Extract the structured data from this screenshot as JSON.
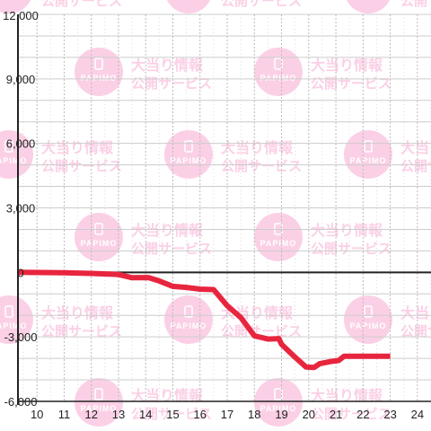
{
  "chart_data": {
    "type": "line",
    "title": "",
    "xlabel": "",
    "ylabel": "",
    "xlim": [
      9.3,
      24.5
    ],
    "ylim": [
      -6000,
      12000
    ],
    "x_ticks": [
      10,
      11,
      12,
      13,
      14,
      15,
      16,
      17,
      18,
      19,
      20,
      21,
      22,
      23,
      24
    ],
    "x_tick_labels": [
      "10",
      "11",
      "12",
      "13",
      "14",
      "15",
      "16",
      "17",
      "18",
      "19",
      "20",
      "21",
      "22",
      "23",
      "24"
    ],
    "y_ticks": [
      -6000,
      -3000,
      0,
      3000,
      6000,
      9000,
      12000
    ],
    "y_tick_labels": [
      "-6,000",
      "-3,000",
      "0",
      "3,000",
      "6,000",
      "9,000",
      "12,000"
    ],
    "grid": true,
    "series": [
      {
        "color": "#e8253e",
        "x": [
          9.3,
          11.0,
          12.0,
          13.0,
          13.5,
          14.1,
          14.5,
          15.0,
          15.5,
          16.0,
          16.5,
          17.0,
          17.5,
          18.0,
          18.5,
          18.9,
          19.0,
          19.5,
          19.9,
          20.2,
          20.4,
          20.8,
          21.1,
          21.3,
          21.6,
          22.0,
          22.5,
          23.0
        ],
        "y": [
          0,
          -20,
          -50,
          -100,
          -250,
          -240,
          -400,
          -650,
          -700,
          -780,
          -800,
          -1550,
          -2100,
          -2950,
          -3100,
          -3080,
          -3350,
          -3950,
          -4400,
          -4420,
          -4250,
          -4150,
          -4100,
          -3900,
          -3900,
          -3900,
          -3900,
          -3900
        ]
      }
    ]
  },
  "watermark": {
    "brand": "PAPIMO",
    "line1": "大当り情報",
    "line2": "公開サービス",
    "circle_color": "#fbd0e6",
    "text_color": "#fbd0e6",
    "icon": "phone-icon"
  },
  "colors": {
    "grid": "#cccccc",
    "grid_minor": "#bbbbbb",
    "axis": "#222222"
  }
}
